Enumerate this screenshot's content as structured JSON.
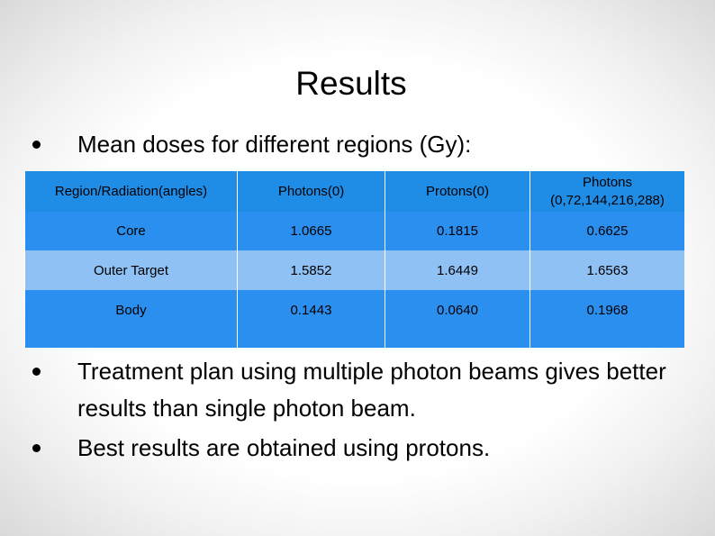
{
  "slide": {
    "title": "Results",
    "bullets": [
      "Mean doses for different regions (Gy):",
      "Treatment plan using multiple photon beams gives better results than single photon beam.",
      "Best results are obtained using protons."
    ],
    "table": {
      "header": [
        "Region/Radiation(angles)",
        "Photons(0)",
        "Protons(0)",
        "Photons (0,72,144,216,288)"
      ],
      "rows": [
        [
          "Core",
          "1.0665",
          "0.1815",
          "0.6625"
        ],
        [
          "Outer Target",
          "1.5852",
          "1.6449",
          "1.6563"
        ],
        [
          "Body",
          "0.1443",
          "0.0640",
          "0.1968"
        ]
      ]
    }
  }
}
